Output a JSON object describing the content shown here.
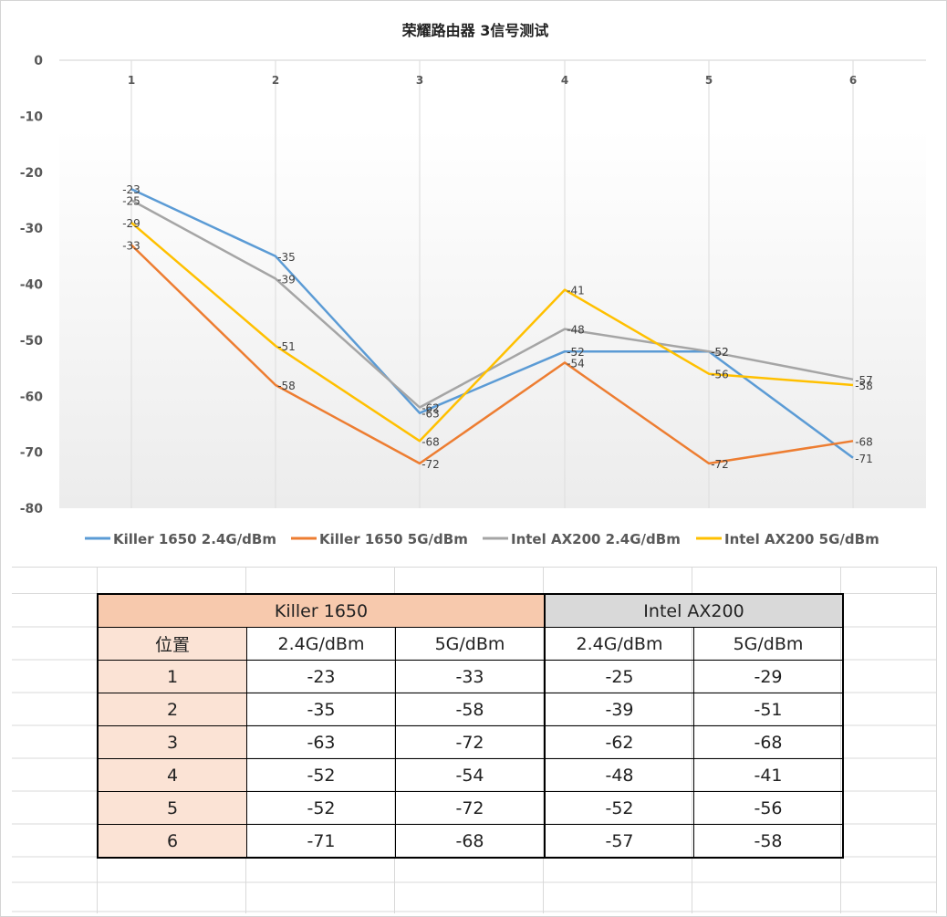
{
  "chart_data": {
    "type": "line",
    "title": "荣耀路由器 3信号测试",
    "categories": [
      "1",
      "2",
      "3",
      "4",
      "5",
      "6"
    ],
    "y_ticks": [
      "0",
      "-10",
      "-20",
      "-30",
      "-40",
      "-50",
      "-60",
      "-70",
      "-80"
    ],
    "ylim": [
      -80,
      0
    ],
    "grid": "vertical",
    "legend_position": "bottom",
    "series": [
      {
        "name": "Killer 1650 2.4G/dBm",
        "color": "#5b9bd5",
        "values": [
          -23,
          -35,
          -63,
          -52,
          -52,
          -71
        ],
        "labels": [
          "-23",
          "-35",
          "-63",
          "-52",
          "-52",
          "-71"
        ]
      },
      {
        "name": "Killer 1650 5G/dBm",
        "color": "#ed7d31",
        "values": [
          -33,
          -58,
          -72,
          -54,
          -72,
          -68
        ],
        "labels": [
          "-33",
          "-58",
          "-72",
          "-54",
          "-72",
          "-68"
        ]
      },
      {
        "name": "Intel AX200 2.4G/dBm",
        "color": "#a5a5a5",
        "values": [
          -25,
          -39,
          -62,
          -48,
          -52,
          -57
        ],
        "labels": [
          "-25",
          "-39",
          "-62",
          "-48",
          "-52",
          "-57"
        ]
      },
      {
        "name": "Intel AX200 5G/dBm",
        "color": "#ffc000",
        "values": [
          -29,
          -51,
          -68,
          -41,
          -56,
          -58
        ],
        "labels": [
          "-29",
          "-51",
          "-68",
          "-41",
          "-56",
          "-58"
        ]
      }
    ]
  },
  "table": {
    "group_killer": "Killer 1650",
    "group_intel": "Intel AX200",
    "col_position": "位置",
    "col_24": "2.4G/dBm",
    "col_5": "5G/dBm",
    "rows": [
      {
        "pos": "1",
        "k24": "-23",
        "k5": "-33",
        "i24": "-25",
        "i5": "-29"
      },
      {
        "pos": "2",
        "k24": "-35",
        "k5": "-58",
        "i24": "-39",
        "i5": "-51"
      },
      {
        "pos": "3",
        "k24": "-63",
        "k5": "-72",
        "i24": "-62",
        "i5": "-68"
      },
      {
        "pos": "4",
        "k24": "-52",
        "k5": "-54",
        "i24": "-48",
        "i5": "-41"
      },
      {
        "pos": "5",
        "k24": "-52",
        "k5": "-72",
        "i24": "-52",
        "i5": "-56"
      },
      {
        "pos": "6",
        "k24": "-71",
        "k5": "-68",
        "i24": "-57",
        "i5": "-58"
      }
    ]
  }
}
